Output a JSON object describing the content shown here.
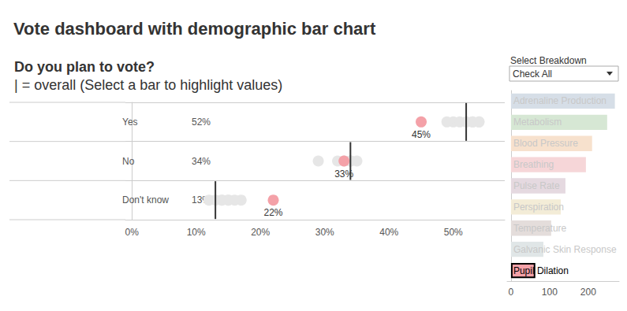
{
  "title": "Vote dashboard with demographic bar chart",
  "chart_data": [
    {
      "type": "scatter",
      "title": "Do you plan to vote?",
      "subtitle": "| = overall (Select a bar to highlight values)",
      "orientation": "horizontal",
      "categories": [
        "Yes",
        "No",
        "Don't know"
      ],
      "xlim": [
        -1,
        58
      ],
      "xticks": [
        {
          "value": 0,
          "label": "0%"
        },
        {
          "value": 10,
          "label": "10%"
        },
        {
          "value": 20,
          "label": "20%"
        },
        {
          "value": 30,
          "label": "30%"
        },
        {
          "value": 40,
          "label": "40%"
        },
        {
          "value": 50,
          "label": "50%"
        }
      ],
      "grid": false,
      "series": [
        {
          "name": "Adrenaline Production",
          "color": "#e6e6e6",
          "marker": "circle",
          "values": [
            53,
            33,
            14
          ]
        },
        {
          "name": "Metabolism",
          "color": "#e6e6e6",
          "marker": "circle",
          "values": [
            54,
            32,
            13
          ]
        },
        {
          "name": "Blood Pressure",
          "color": "#e6e6e6",
          "marker": "circle",
          "values": [
            52,
            34,
            14
          ]
        },
        {
          "name": "Breathing",
          "color": "#e6e6e6",
          "marker": "circle",
          "values": [
            50,
            34,
            15
          ]
        },
        {
          "name": "Pulse Rate",
          "color": "#e6e6e6",
          "marker": "circle",
          "values": [
            49,
            35,
            16
          ]
        },
        {
          "name": "Perspiration",
          "color": "#e6e6e6",
          "marker": "circle",
          "values": [
            51,
            34,
            15
          ]
        },
        {
          "name": "Temperature",
          "color": "#e6e6e6",
          "marker": "circle",
          "values": [
            53,
            29,
            17
          ]
        },
        {
          "name": "Galvanic Skin Response",
          "color": "#e6e6e6",
          "marker": "circle",
          "values": [
            54,
            34,
            12
          ]
        },
        {
          "name": "Pupil Dilation",
          "color": "#f4a1a8",
          "marker": "circle",
          "values": [
            45,
            33,
            22
          ],
          "value_labels": [
            "45%",
            "33%",
            "22%"
          ]
        },
        {
          "name": "overall",
          "color": "#333333",
          "marker": "line",
          "values": [
            52,
            34,
            13
          ],
          "value_labels": [
            "52%",
            "34%",
            "13%"
          ]
        }
      ]
    },
    {
      "type": "bar",
      "title": "Select Breakdown",
      "annotations": [
        "Check All"
      ],
      "orientation": "horizontal",
      "categories": [
        "Adrenaline Production",
        "Metabolism",
        "Blood Pressure",
        "Breathing",
        "Pulse Rate",
        "Perspiration",
        "Temperature",
        "Galvanic Skin Response",
        "Pupil Dilation"
      ],
      "values": [
        269,
        249,
        210,
        194,
        141,
        129,
        104,
        84,
        63
      ],
      "colors": [
        "#d6dee7",
        "#d6e7d4",
        "#f7e1cd",
        "#f6d6d8",
        "#e5d9e0",
        "#f3ecd7",
        "#e4dddb",
        "#e0e6e7",
        "#f4a1a8"
      ],
      "xlim": [
        -10,
        280
      ],
      "xticks": [
        0,
        100,
        200
      ],
      "grid": false,
      "tick_labels": "x"
    }
  ]
}
